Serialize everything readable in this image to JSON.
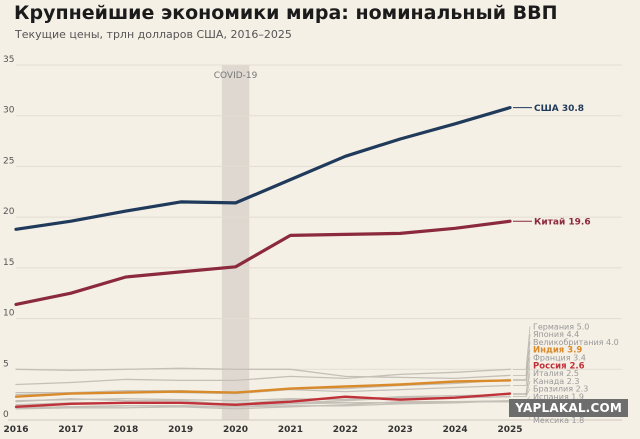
{
  "title": "Крупнейшие экономики мира: номинальный ВВП",
  "subtitle": "Текущие цены, трлн долларов США, 2016–2025",
  "watermark": "YAPLAKAL.COM",
  "chart_data": {
    "type": "line",
    "x": [
      2016,
      2017,
      2018,
      2019,
      2020,
      2021,
      2022,
      2023,
      2024,
      2025
    ],
    "ylim": [
      0,
      35
    ],
    "yticks": [
      0,
      5,
      10,
      15,
      20,
      25,
      30,
      35
    ],
    "grid": true,
    "annotation": {
      "label": "COVID-19",
      "x_from": 2019.75,
      "x_to": 2020.25
    },
    "highlight_series": [
      {
        "name": "США",
        "label_value": "30.8",
        "color": "#1f3a5a",
        "values": [
          18.8,
          19.6,
          20.6,
          21.5,
          21.4,
          23.7,
          26.0,
          27.7,
          29.2,
          30.8
        ]
      },
      {
        "name": "Китай",
        "label_value": "19.6",
        "color": "#8b2a3c",
        "values": [
          11.4,
          12.5,
          14.1,
          14.6,
          15.1,
          18.2,
          18.3,
          18.4,
          18.9,
          19.6
        ]
      },
      {
        "name": "Индия",
        "label_value": "3.9",
        "color": "#d98a2b",
        "values": [
          2.3,
          2.6,
          2.7,
          2.8,
          2.7,
          3.1,
          3.3,
          3.5,
          3.8,
          3.9
        ]
      },
      {
        "name": "Россия",
        "label_value": "2.6",
        "color": "#c0323a",
        "values": [
          1.3,
          1.6,
          1.7,
          1.7,
          1.5,
          1.8,
          2.3,
          2.0,
          2.2,
          2.6
        ]
      }
    ],
    "background_series": [
      {
        "name": "Германия",
        "label_value": "5.0",
        "values": [
          3.5,
          3.7,
          4.0,
          3.9,
          3.9,
          4.3,
          4.1,
          4.5,
          4.7,
          5.0
        ]
      },
      {
        "name": "Япония",
        "label_value": "4.4",
        "values": [
          5.0,
          4.9,
          5.0,
          5.1,
          5.0,
          5.0,
          4.3,
          4.2,
          4.1,
          4.4
        ]
      },
      {
        "name": "Великобритания",
        "label_value": "4.0",
        "values": [
          2.7,
          2.7,
          2.9,
          2.9,
          2.7,
          3.1,
          3.1,
          3.4,
          3.6,
          4.0
        ]
      },
      {
        "name": "Франция",
        "label_value": "3.4",
        "values": [
          2.5,
          2.6,
          2.8,
          2.7,
          2.6,
          3.0,
          2.8,
          3.0,
          3.2,
          3.4
        ]
      },
      {
        "name": "Италия",
        "label_value": "2.5",
        "values": [
          1.9,
          2.0,
          2.1,
          2.0,
          1.9,
          2.1,
          2.0,
          2.3,
          2.4,
          2.5
        ]
      },
      {
        "name": "Канада",
        "label_value": "2.3",
        "values": [
          1.5,
          1.7,
          1.7,
          1.7,
          1.6,
          2.0,
          2.2,
          2.1,
          2.2,
          2.3
        ]
      },
      {
        "name": "Бразилия",
        "label_value": "2.3",
        "values": [
          1.8,
          2.1,
          1.9,
          1.9,
          1.5,
          1.7,
          1.9,
          2.2,
          2.2,
          2.3
        ]
      },
      {
        "name": "Испания",
        "label_value": "1.9",
        "values": [
          1.2,
          1.3,
          1.4,
          1.4,
          1.3,
          1.4,
          1.4,
          1.6,
          1.7,
          1.9
        ]
      },
      {
        "name": "Южная Корея",
        "label_value": "1.9",
        "values": [
          1.5,
          1.6,
          1.7,
          1.7,
          1.6,
          1.8,
          1.7,
          1.7,
          1.8,
          1.9
        ]
      },
      {
        "name": "Австралия",
        "label_value": "1.8",
        "values": [
          1.2,
          1.3,
          1.4,
          1.4,
          1.3,
          1.6,
          1.7,
          1.7,
          1.8,
          1.8
        ]
      },
      {
        "name": "Мексика",
        "label_value": "1.8",
        "values": [
          1.1,
          1.2,
          1.2,
          1.3,
          1.1,
          1.3,
          1.5,
          1.8,
          1.8,
          1.8
        ]
      }
    ]
  }
}
